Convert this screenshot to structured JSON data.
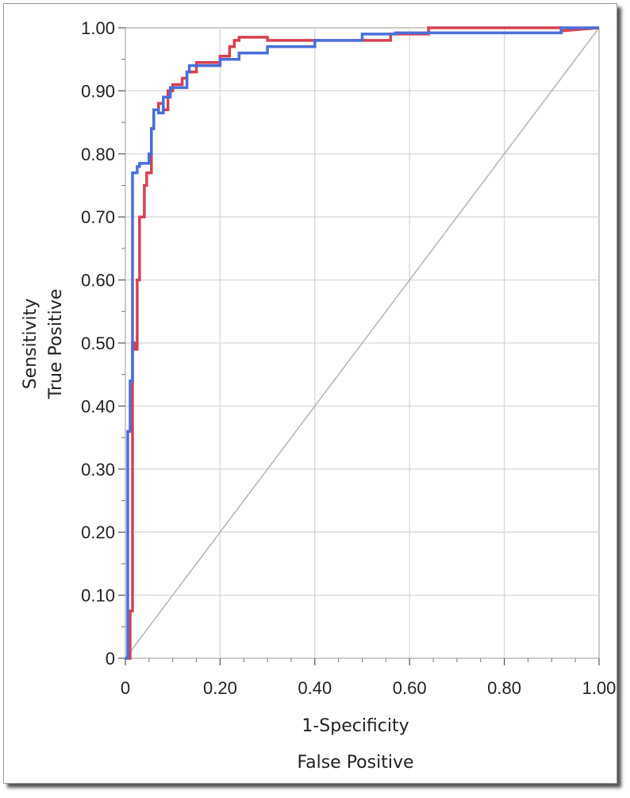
{
  "chart_data": {
    "type": "line",
    "xlabel": [
      "1-Specificity",
      "False Positive"
    ],
    "ylabel": [
      "Sensitivity",
      "True Positive"
    ],
    "xlim": [
      0,
      1
    ],
    "ylim": [
      0,
      1
    ],
    "grid": true,
    "x_ticks": [
      {
        "v": 0,
        "label": "0"
      },
      {
        "v": 0.2,
        "label": "0.20"
      },
      {
        "v": 0.4,
        "label": "0.40"
      },
      {
        "v": 0.6,
        "label": "0.60"
      },
      {
        "v": 0.8,
        "label": "0.80"
      },
      {
        "v": 1.0,
        "label": "1.00"
      }
    ],
    "y_ticks": [
      {
        "v": 0,
        "label": "0"
      },
      {
        "v": 0.1,
        "label": "0.10"
      },
      {
        "v": 0.2,
        "label": "0.20"
      },
      {
        "v": 0.3,
        "label": "0.30"
      },
      {
        "v": 0.4,
        "label": "0.40"
      },
      {
        "v": 0.5,
        "label": "0.50"
      },
      {
        "v": 0.6,
        "label": "0.60"
      },
      {
        "v": 0.7,
        "label": "0.70"
      },
      {
        "v": 0.8,
        "label": "0.80"
      },
      {
        "v": 0.9,
        "label": "0.90"
      },
      {
        "v": 1.0,
        "label": "1.00"
      }
    ],
    "reference_line": {
      "x": [
        0,
        1
      ],
      "y": [
        0,
        1
      ],
      "color": "#b4b4b4"
    },
    "series": [
      {
        "color": "#d64050",
        "x": [
          0,
          0.01,
          0.01,
          0.015,
          0.015,
          0.02,
          0.02,
          0.025,
          0.025,
          0.03,
          0.03,
          0.04,
          0.04,
          0.045,
          0.045,
          0.055,
          0.055,
          0.06,
          0.06,
          0.07,
          0.07,
          0.08,
          0.08,
          0.09,
          0.09,
          0.1,
          0.1,
          0.12,
          0.12,
          0.13,
          0.13,
          0.15,
          0.15,
          0.2,
          0.2,
          0.22,
          0.22,
          0.23,
          0.23,
          0.24,
          0.24,
          0.3,
          0.3,
          0.56,
          0.56,
          0.64,
          0.64,
          0.92,
          0.92,
          1.0
        ],
        "y": [
          0,
          0,
          0.075,
          0.075,
          0.5,
          0.5,
          0.49,
          0.49,
          0.6,
          0.6,
          0.7,
          0.7,
          0.75,
          0.75,
          0.77,
          0.77,
          0.84,
          0.84,
          0.87,
          0.87,
          0.88,
          0.88,
          0.87,
          0.87,
          0.9,
          0.9,
          0.91,
          0.91,
          0.92,
          0.92,
          0.93,
          0.93,
          0.945,
          0.945,
          0.955,
          0.955,
          0.97,
          0.97,
          0.98,
          0.98,
          0.985,
          0.985,
          0.98,
          0.98,
          0.99,
          0.99,
          1.0,
          1.0,
          0.995,
          1.0
        ]
      },
      {
        "color": "#4a6fd9",
        "x": [
          0,
          0.005,
          0.005,
          0.01,
          0.01,
          0.015,
          0.015,
          0.02,
          0.02,
          0.025,
          0.025,
          0.03,
          0.03,
          0.04,
          0.04,
          0.05,
          0.05,
          0.055,
          0.055,
          0.06,
          0.06,
          0.07,
          0.07,
          0.08,
          0.08,
          0.095,
          0.095,
          0.13,
          0.13,
          0.135,
          0.135,
          0.2,
          0.2,
          0.24,
          0.24,
          0.3,
          0.3,
          0.4,
          0.4,
          0.5,
          0.5,
          0.57,
          0.57,
          0.92,
          0.92,
          1.0
        ],
        "y": [
          0,
          0,
          0.36,
          0.36,
          0.44,
          0.44,
          0.77,
          0.77,
          0.77,
          0.77,
          0.78,
          0.78,
          0.785,
          0.785,
          0.785,
          0.785,
          0.8,
          0.8,
          0.84,
          0.84,
          0.87,
          0.87,
          0.865,
          0.865,
          0.89,
          0.89,
          0.905,
          0.905,
          0.93,
          0.93,
          0.94,
          0.94,
          0.95,
          0.95,
          0.96,
          0.96,
          0.97,
          0.97,
          0.98,
          0.98,
          0.99,
          0.99,
          0.992,
          0.992,
          1.0,
          1.0
        ]
      }
    ]
  }
}
